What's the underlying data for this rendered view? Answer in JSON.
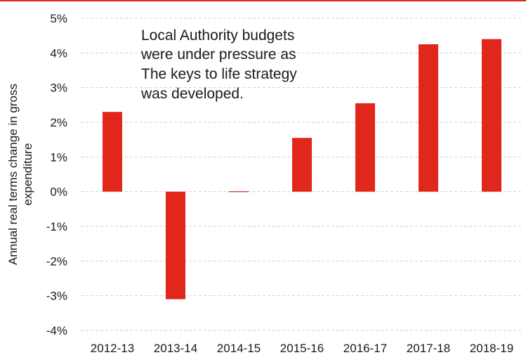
{
  "colors": {
    "bar": "#e1261c",
    "top_rule": "#e1261c",
    "grid": "#cfcfcf",
    "text": "#1a1a1a"
  },
  "chart_data": {
    "type": "bar",
    "categories": [
      "2012-13",
      "2013-14",
      "2014-15",
      "2015-16",
      "2016-17",
      "2017-18",
      "2018-19"
    ],
    "values": [
      2.3,
      -3.1,
      0.02,
      1.55,
      2.55,
      4.25,
      4.4
    ],
    "value_unit": "%",
    "ylabel_lines": [
      "Annual real terms change in gross",
      "expenditure"
    ],
    "ylim": [
      -4,
      5
    ],
    "yticks": [
      5,
      4,
      3,
      2,
      1,
      0,
      -1,
      -2,
      -3,
      -4
    ],
    "ytick_labels": [
      "5%",
      "4%",
      "3%",
      "2%",
      "1%",
      "0%",
      "-1%",
      "-2%",
      "-3%",
      "-4%"
    ],
    "grid": true,
    "legend": "none",
    "annotation_lines": [
      "Local Authority budgets",
      "were under pressure as",
      "The keys to life strategy",
      "was developed."
    ]
  }
}
